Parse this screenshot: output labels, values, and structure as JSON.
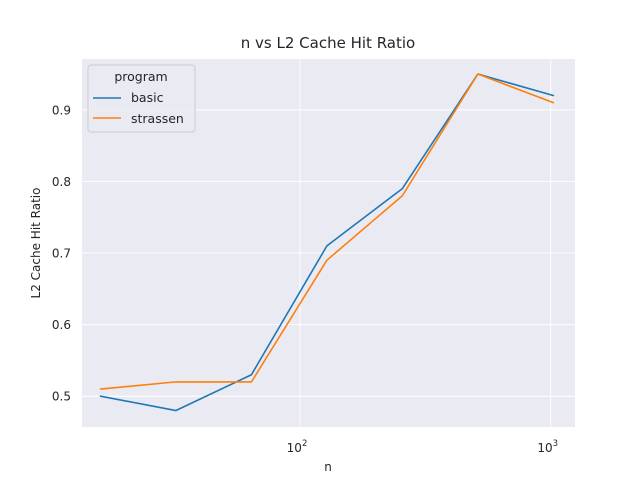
{
  "chart_data": {
    "type": "line",
    "title": "n vs L2 Cache Hit Ratio",
    "xlabel": "n",
    "ylabel": "L2 Cache Hit Ratio",
    "xscale": "log",
    "xlim": [
      13.5,
      1250
    ],
    "ylim": [
      0.457,
      0.971
    ],
    "x_ticks": [
      {
        "value": 100,
        "base": "10",
        "exp": "2"
      },
      {
        "value": 1000,
        "base": "10",
        "exp": "3"
      }
    ],
    "y_ticks": [
      {
        "value": 0.5,
        "label": "0.5"
      },
      {
        "value": 0.6,
        "label": "0.6"
      },
      {
        "value": 0.7,
        "label": "0.7"
      },
      {
        "value": 0.8,
        "label": "0.8"
      },
      {
        "value": 0.9,
        "label": "0.9"
      }
    ],
    "grid": true,
    "legend": {
      "title": "program",
      "placement": "top-left"
    },
    "x": [
      16,
      32,
      64,
      128,
      256,
      512,
      1024
    ],
    "series": [
      {
        "name": "basic",
        "color": "#1f77b4",
        "values": [
          0.5,
          0.48,
          0.53,
          0.71,
          0.79,
          0.95,
          0.92
        ]
      },
      {
        "name": "strassen",
        "color": "#ff7f0e",
        "values": [
          0.51,
          0.52,
          0.52,
          0.69,
          0.78,
          0.95,
          0.91
        ]
      }
    ]
  }
}
